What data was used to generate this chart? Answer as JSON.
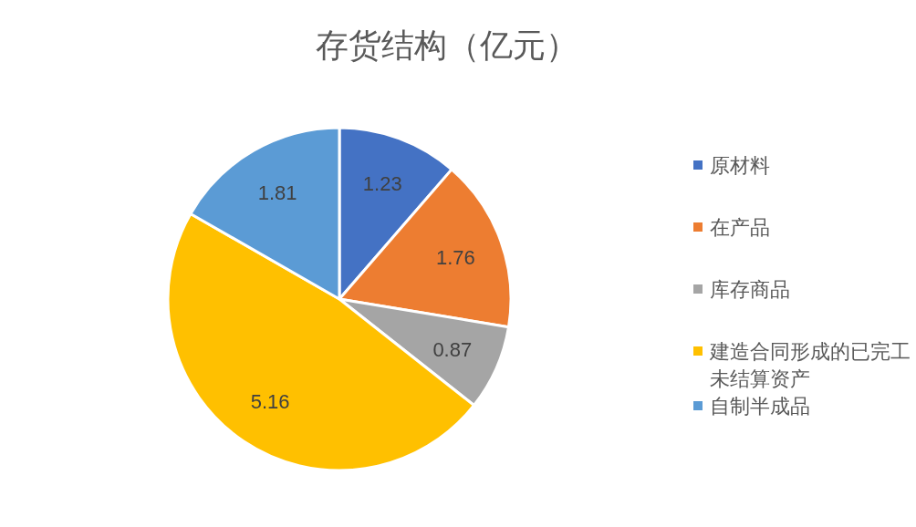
{
  "chart_data": {
    "type": "pie",
    "title": "存货结构（亿元）",
    "categories": [
      "原材料",
      "在产品",
      "库存商品",
      "建造合同形成的已完工未结算资产",
      "自制半成品"
    ],
    "values": [
      1.23,
      1.76,
      0.87,
      5.16,
      1.81
    ],
    "colors": [
      "#4472c4",
      "#ed7d31",
      "#a5a5a5",
      "#ffc000",
      "#5b9bd5"
    ],
    "data_labels": true,
    "legend": "right"
  }
}
